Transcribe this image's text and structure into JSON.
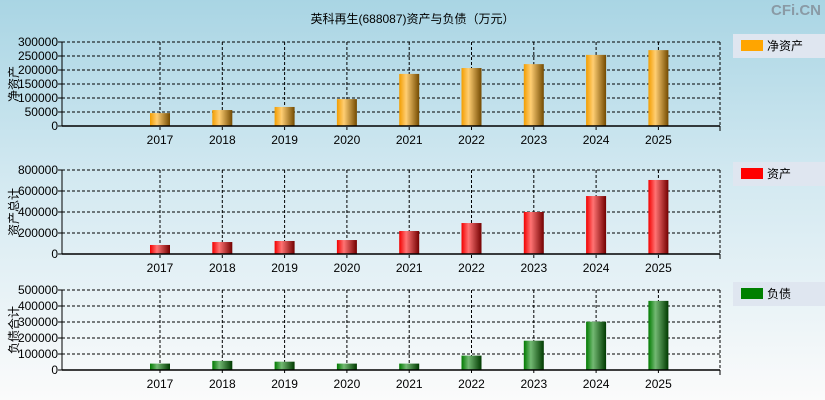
{
  "title": "英科再生(688087)资产与负债（万元）",
  "logo": "CFi.CN",
  "chart_data": [
    {
      "type": "bar",
      "ylabel": "净资产",
      "legend": "净资产",
      "color": "#FFA500",
      "categories": [
        "2017",
        "2018",
        "2019",
        "2020",
        "2021",
        "2022",
        "2023",
        "2024",
        "2025"
      ],
      "values": [
        46000,
        57000,
        68000,
        96000,
        186000,
        207000,
        221000,
        254000,
        271000
      ],
      "ylim": [
        0,
        300000
      ],
      "yticks": [
        "0",
        "50000",
        "100000",
        "150000",
        "200000",
        "250000",
        "300000"
      ],
      "grid": true,
      "legend_position": "right"
    },
    {
      "type": "bar",
      "ylabel": "资产总计",
      "legend": "资产",
      "color": "#FF0000",
      "categories": [
        "2017",
        "2018",
        "2019",
        "2020",
        "2021",
        "2022",
        "2023",
        "2024",
        "2025"
      ],
      "values": [
        86000,
        114000,
        124000,
        133000,
        219000,
        295000,
        400000,
        552000,
        705000
      ],
      "ylim": [
        0,
        800000
      ],
      "yticks": [
        "0",
        "200000",
        "400000",
        "600000",
        "800000"
      ],
      "grid": true,
      "legend_position": "right"
    },
    {
      "type": "bar",
      "ylabel": "负债合计",
      "legend": "负债",
      "color": "#008000",
      "categories": [
        "2017",
        "2018",
        "2019",
        "2020",
        "2021",
        "2022",
        "2023",
        "2024",
        "2025"
      ],
      "values": [
        40000,
        57000,
        52000,
        40000,
        40000,
        90000,
        183000,
        302000,
        432000
      ],
      "ylim": [
        0,
        500000
      ],
      "yticks": [
        "0",
        "100000",
        "200000",
        "300000",
        "400000",
        "500000"
      ],
      "grid": true,
      "legend_position": "right"
    }
  ]
}
